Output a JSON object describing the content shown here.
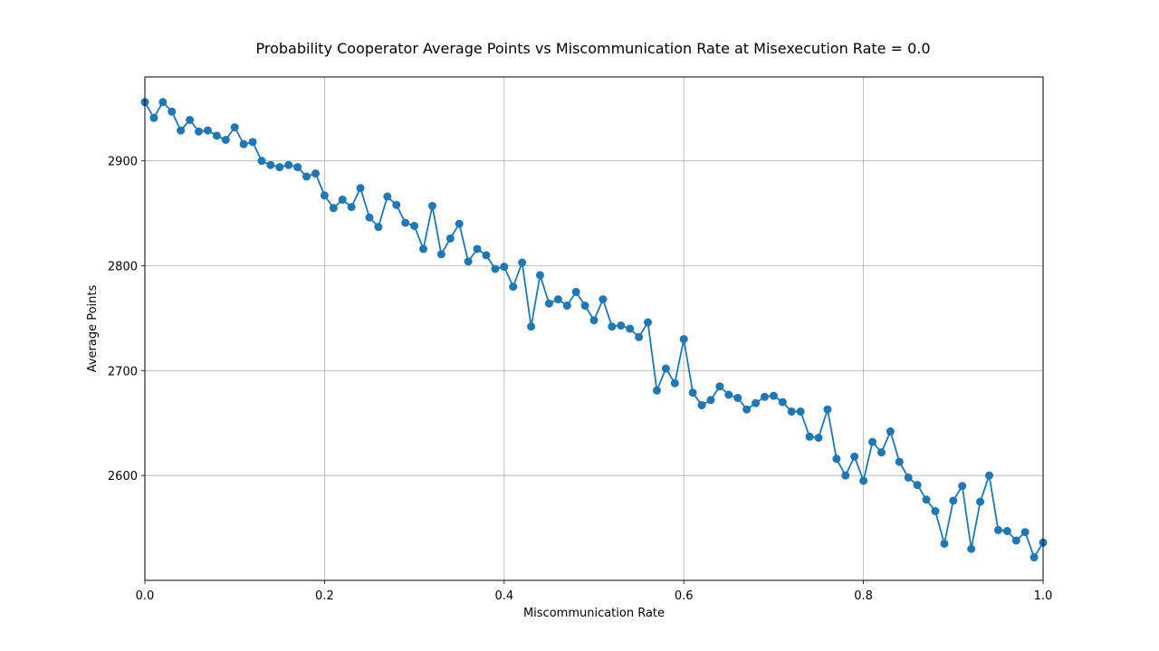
{
  "chart_data": {
    "type": "line",
    "title": "Probability Cooperator Average Points vs Miscommunication Rate at Misexecution Rate = 0.0",
    "xlabel": "Miscommunication Rate",
    "ylabel": "Average Points",
    "xlim": [
      0.0,
      1.0
    ],
    "ylim": [
      2500,
      2980
    ],
    "xticks": [
      0.0,
      0.2,
      0.4,
      0.6,
      0.8,
      1.0
    ],
    "xtick_labels": [
      "0.0",
      "0.2",
      "0.4",
      "0.6",
      "0.8",
      "1.0"
    ],
    "yticks": [
      2600,
      2700,
      2800,
      2900
    ],
    "ytick_labels": [
      "2600",
      "2700",
      "2800",
      "2900"
    ],
    "grid": true,
    "marker": "circle",
    "color": "#1f77b4",
    "series": [
      {
        "x": [
          0.0,
          0.01,
          0.02,
          0.03,
          0.04,
          0.05,
          0.06,
          0.07,
          0.08,
          0.09,
          0.1,
          0.11,
          0.12,
          0.13,
          0.14,
          0.15,
          0.16,
          0.17,
          0.18,
          0.19,
          0.2,
          0.21,
          0.22,
          0.23,
          0.24,
          0.25,
          0.26,
          0.27,
          0.28,
          0.29,
          0.3,
          0.31,
          0.32,
          0.33,
          0.34,
          0.35,
          0.36,
          0.37,
          0.38,
          0.39,
          0.4,
          0.41,
          0.42,
          0.43,
          0.44,
          0.45,
          0.46,
          0.47,
          0.48,
          0.49,
          0.5,
          0.51,
          0.52,
          0.53,
          0.54,
          0.55,
          0.56,
          0.57,
          0.58,
          0.59,
          0.6,
          0.61,
          0.62,
          0.63,
          0.64,
          0.65,
          0.66,
          0.67,
          0.68,
          0.69,
          0.7,
          0.71,
          0.72,
          0.73,
          0.74,
          0.75,
          0.76,
          0.77,
          0.78,
          0.79,
          0.8,
          0.81,
          0.82,
          0.83,
          0.84,
          0.85,
          0.86,
          0.87,
          0.88,
          0.89,
          0.9,
          0.91,
          0.92,
          0.93,
          0.94,
          0.95,
          0.96,
          0.97,
          0.98,
          0.99,
          1.0
        ],
        "y": [
          2956,
          2941,
          2956,
          2947,
          2929,
          2939,
          2928,
          2929,
          2924,
          2920,
          2932,
          2916,
          2918,
          2900,
          2896,
          2894,
          2896,
          2894,
          2885,
          2888,
          2867,
          2855,
          2863,
          2856,
          2874,
          2846,
          2837,
          2866,
          2858,
          2841,
          2838,
          2816,
          2857,
          2811,
          2826,
          2840,
          2804,
          2816,
          2810,
          2797,
          2799,
          2780,
          2803,
          2742,
          2791,
          2764,
          2768,
          2762,
          2775,
          2762,
          2748,
          2768,
          2742,
          2743,
          2740,
          2732,
          2746,
          2681,
          2702,
          2688,
          2730,
          2679,
          2667,
          2672,
          2685,
          2677,
          2674,
          2663,
          2669,
          2675,
          2676,
          2670,
          2661,
          2661,
          2637,
          2636,
          2663,
          2616,
          2600,
          2618,
          2595,
          2632,
          2622,
          2642,
          2613,
          2598,
          2591,
          2577,
          2566,
          2535,
          2576,
          2590,
          2530,
          2575,
          2600,
          2548,
          2547,
          2538,
          2546,
          2522,
          2536
        ]
      }
    ]
  }
}
